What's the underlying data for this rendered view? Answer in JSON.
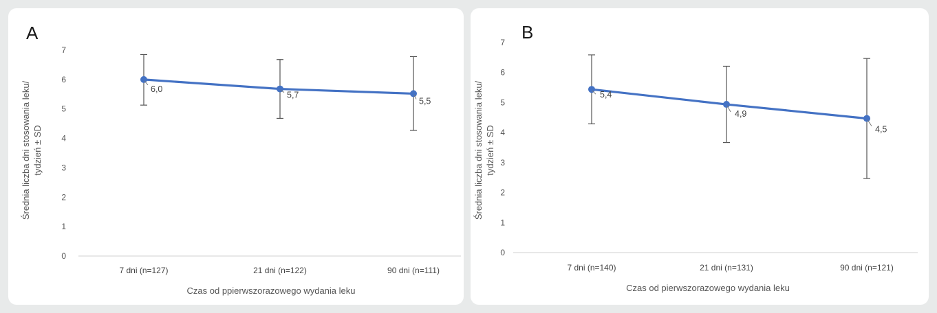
{
  "chart_data": [
    {
      "panel_label": "A",
      "type": "line",
      "categories": [
        "7 dni (n=127)",
        "21 dni (n=122)",
        "90 dni (n=111)"
      ],
      "values": [
        6.0,
        5.68,
        5.52
      ],
      "error_low": [
        5.13,
        4.68,
        4.27
      ],
      "error_high": [
        6.85,
        6.68,
        6.78
      ],
      "data_labels": [
        "6,0",
        "5,7",
        "5,5"
      ],
      "xlabel": "Czas od ppierwszorazowego wydania leku",
      "ylabel_lines": [
        "Średnia liczba dni stosowania leku/",
        "tydzień ± SD"
      ],
      "yticks": [
        "0",
        "1",
        "2",
        "3",
        "4",
        "5",
        "6",
        "7"
      ],
      "ylim": [
        0,
        7
      ],
      "line_color": "#4472c4",
      "error_color": "#555555"
    },
    {
      "panel_label": "B",
      "type": "line",
      "categories": [
        "7 dni (n=140)",
        "21 dni (n=131)",
        "90 dni (n=121)"
      ],
      "values": [
        5.44,
        4.94,
        4.47
      ],
      "error_low": [
        4.29,
        3.67,
        2.47
      ],
      "error_high": [
        6.59,
        6.21,
        6.47
      ],
      "data_labels": [
        "5,4",
        "4,9",
        "4,5"
      ],
      "xlabel": "Czas od pierwszorazowego wydania leku",
      "ylabel_lines": [
        "Średnia liczba dni stosowania leku/",
        "tydzień ± SD"
      ],
      "yticks": [
        "0",
        "1",
        "2",
        "3",
        "4",
        "5",
        "6",
        "7"
      ],
      "ylim": [
        0,
        7
      ],
      "line_color": "#4472c4",
      "error_color": "#555555"
    }
  ]
}
